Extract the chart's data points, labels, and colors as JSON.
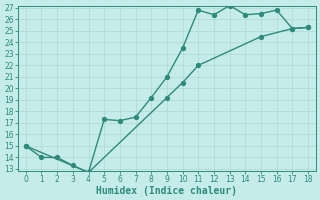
{
  "line1_x": [
    0,
    1,
    2,
    3,
    4,
    5,
    6,
    7,
    8,
    9,
    10,
    11,
    12,
    13,
    14,
    15,
    16,
    17,
    18
  ],
  "line1_y": [
    15,
    14,
    14,
    13.3,
    12.7,
    17.3,
    17.2,
    17.5,
    19.2,
    21.0,
    23.5,
    26.8,
    26.4,
    27.2,
    26.4,
    26.5,
    26.8,
    25.2,
    25.3
  ],
  "line2_x": [
    0,
    4,
    9,
    10,
    11,
    15,
    17,
    18
  ],
  "line2_y": [
    15,
    12.7,
    19.2,
    20.5,
    22.0,
    24.5,
    25.2,
    25.3
  ],
  "color": "#2e8b7a",
  "bg_color": "#c5ecea",
  "grid_color": "#afd8d4",
  "xlabel": "Humidex (Indice chaleur)",
  "ylim": [
    13,
    27
  ],
  "xlim": [
    -0.5,
    18.5
  ],
  "yticks": [
    13,
    14,
    15,
    16,
    17,
    18,
    19,
    20,
    21,
    22,
    23,
    24,
    25,
    26,
    27
  ],
  "xticks": [
    0,
    1,
    2,
    3,
    4,
    5,
    6,
    7,
    8,
    9,
    10,
    11,
    12,
    13,
    14,
    15,
    16,
    17,
    18
  ],
  "tick_fontsize": 5.5,
  "xlabel_fontsize": 7,
  "line_width": 1.0,
  "marker_size": 2.8
}
